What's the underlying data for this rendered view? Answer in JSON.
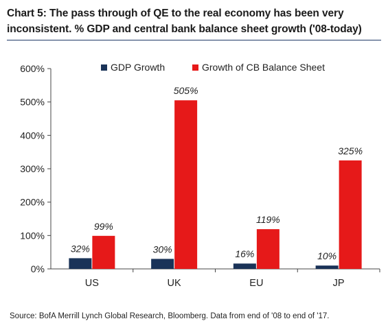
{
  "title": "Chart 5: The pass through of QE to the real economy has been very inconsistent. % GDP and central bank balance sheet growth ('08-today)",
  "source": "Source: BofA Merrill Lynch Global Research, Bloomberg. Data from end of '08 to end of '17.",
  "chart_data": {
    "type": "bar",
    "title": "Chart 5: The pass through of QE to the real economy has been very inconsistent. % GDP and central bank balance sheet growth ('08-today)",
    "xlabel": "",
    "ylabel": "",
    "categories": [
      "US",
      "UK",
      "EU",
      "JP"
    ],
    "series": [
      {
        "name": "GDP Growth",
        "values": [
          32,
          30,
          16,
          10
        ],
        "color": "#1a3358",
        "labels": [
          "32%",
          "30%",
          "16%",
          "10%"
        ]
      },
      {
        "name": "Growth of CB Balance Sheet",
        "values": [
          99,
          505,
          119,
          325
        ],
        "color": "#e61919",
        "labels": [
          "99%",
          "505%",
          "119%",
          "325%"
        ]
      }
    ],
    "ylim": [
      0,
      600
    ],
    "yticks": [
      0,
      100,
      200,
      300,
      400,
      500,
      600
    ],
    "ytick_labels": [
      "0%",
      "100%",
      "200%",
      "300%",
      "400%",
      "500%",
      "600%"
    ],
    "grid": false,
    "legend": "top-center"
  }
}
